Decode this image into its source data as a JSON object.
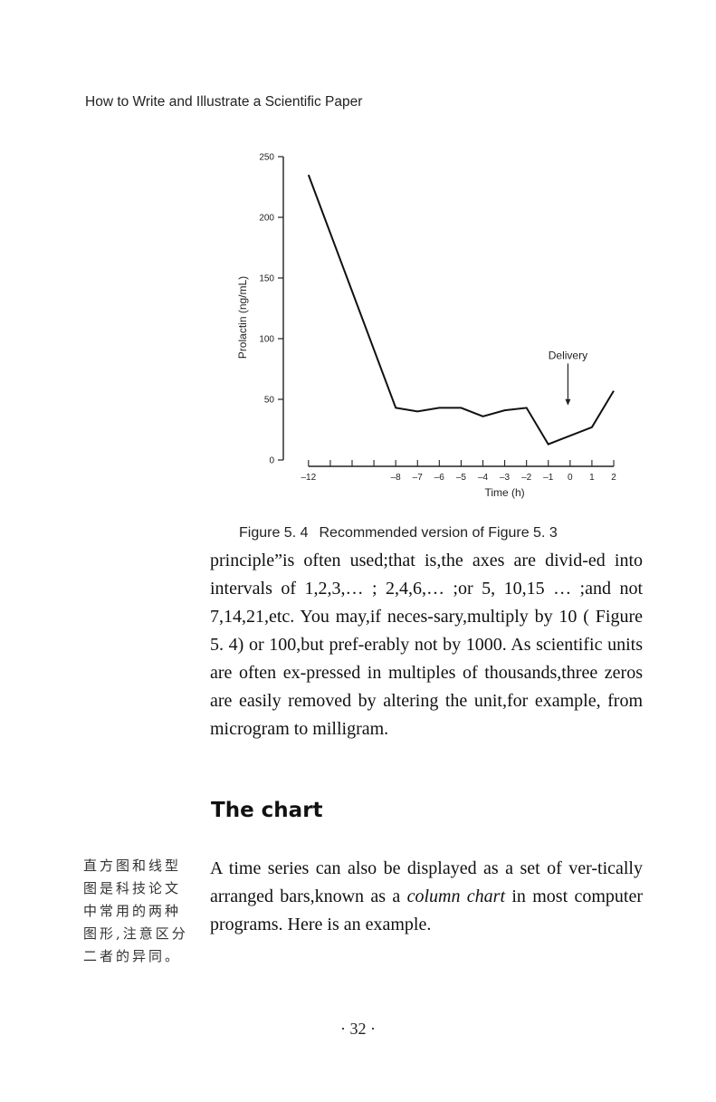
{
  "header": {
    "running_head": "How to Write and Illustrate a Scientific Paper"
  },
  "figure": {
    "caption_label": "Figure 5. 4",
    "caption_text": "Recommended version of Figure 5. 3"
  },
  "chart_data": {
    "type": "line",
    "xlabel": "Time (h)",
    "ylabel": "Prolactin (ng/mL)",
    "xlim": [
      -12.2,
      2
    ],
    "ylim": [
      0,
      250
    ],
    "x_ticks": [
      -12,
      -11,
      -10,
      -9,
      -8,
      -7,
      -6,
      -5,
      -4,
      -3,
      -2,
      -1,
      0,
      1,
      2
    ],
    "x_tick_labels": [
      {
        "x": -12,
        "label": "–12"
      },
      {
        "x": -8,
        "label": "–8"
      },
      {
        "x": -7,
        "label": "–7"
      },
      {
        "x": -6,
        "label": "–6"
      },
      {
        "x": -5,
        "label": "–5"
      },
      {
        "x": -4,
        "label": "–4"
      },
      {
        "x": -3,
        "label": "–3"
      },
      {
        "x": -2,
        "label": "–2"
      },
      {
        "x": -1,
        "label": "–1"
      },
      {
        "x": 0,
        "label": "0"
      },
      {
        "x": 1,
        "label": "1"
      },
      {
        "x": 2,
        "label": "2"
      }
    ],
    "y_ticks": [
      {
        "y": 0,
        "label": "0"
      },
      {
        "y": 50,
        "label": "50"
      },
      {
        "y": 100,
        "label": "100"
      },
      {
        "y": 150,
        "label": "150"
      },
      {
        "y": 200,
        "label": "200"
      },
      {
        "y": 250,
        "label": "250"
      }
    ],
    "series": [
      {
        "x": [
          -12,
          -8,
          -7,
          -6,
          -5,
          -4,
          -3,
          -2,
          -1,
          0,
          1,
          2
        ],
        "y": [
          235,
          43,
          40,
          43,
          43,
          36,
          41,
          43,
          13,
          20,
          27,
          57
        ]
      }
    ],
    "annotation": {
      "label": "Delivery",
      "x": -0.1,
      "y_from": 90,
      "y_to": 45
    },
    "grid": false
  },
  "body": {
    "paragraph1": "principle”is often used;that is,the axes are divid-ed into intervals of 1,2,3,… ; 2,4,6,… ;or 5, 10,15 … ;and not 7,14,21,etc. You may,if neces-sary,multiply by 10 ( Figure 5. 4) or 100,but pref-erably not by 1000. As scientific units are often ex-pressed in multiples of thousands,three zeros are easily removed by altering the unit,for example, from microgram to milligram.",
    "section_heading": "The chart",
    "paragraph2_before": "A time series can also be displayed as a set of ver-tically arranged bars,known as a ",
    "paragraph2_italic": "column chart",
    "paragraph2_after": " in most computer programs. Here is an example."
  },
  "margin_note": "直方图和线型图是科技论文中常用的两种图形,注意区分二者的异同。",
  "footer": {
    "page_number": "· 32 ·"
  }
}
